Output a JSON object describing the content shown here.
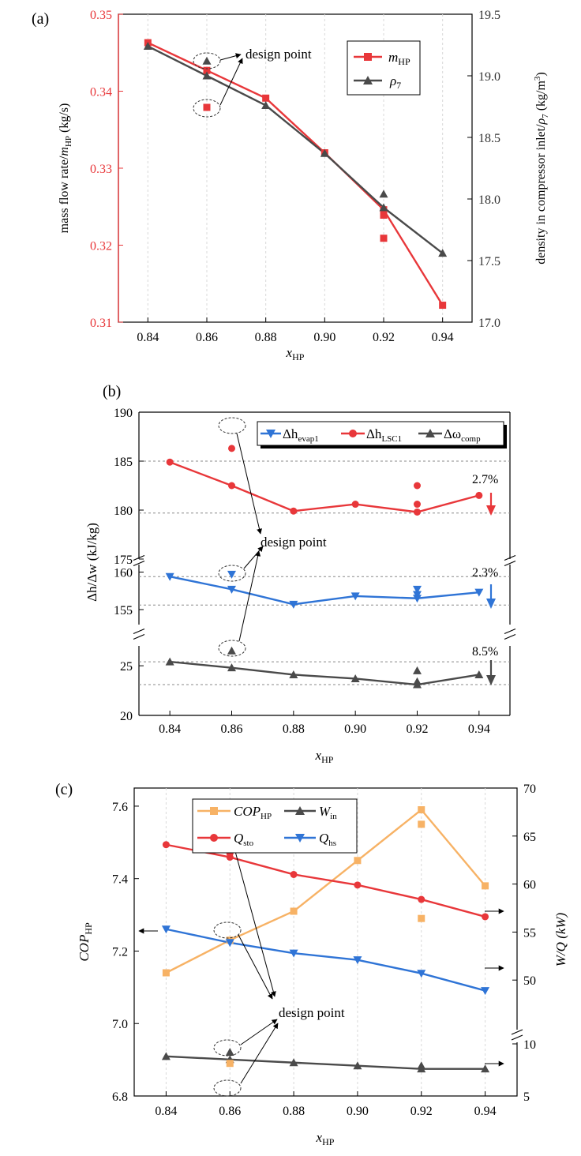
{
  "colors": {
    "red": "#e8373a",
    "dark": "#4a4a4a",
    "blue": "#2f74d6",
    "orange": "#f7b265",
    "axis": "#000000",
    "grid": "#888888"
  },
  "chart_data": [
    {
      "panel_label": "(a)",
      "type": "line",
      "xlabel_main": "x",
      "xlabel_sub": "HP",
      "xlim": [
        0.83,
        0.95
      ],
      "xticks": [
        "0.84",
        "0.86",
        "0.88",
        "0.90",
        "0.92",
        "0.94"
      ],
      "ylabel_left": {
        "parts": [
          "mass flow rate/",
          "m",
          "HP",
          " (kg/s)"
        ]
      },
      "ylabel_right": {
        "parts": [
          "density in compressor inlet/",
          "ρ",
          "7",
          " (kg/m",
          "3",
          ")"
        ]
      },
      "ylim_left": [
        0.31,
        0.35
      ],
      "yticks_left": [
        "0.31",
        "0.32",
        "0.33",
        "0.34",
        "0.35"
      ],
      "ylim_right": [
        17.0,
        19.5
      ],
      "yticks_right": [
        "17.0",
        "17.5",
        "18.0",
        "18.5",
        "19.0",
        "19.5"
      ],
      "annotation": "design point",
      "legend_placement": "top-right",
      "series": [
        {
          "name": "m",
          "name_sub": "HP",
          "axis": "left",
          "marker": "square",
          "color_key": "red",
          "x": [
            0.84,
            0.86,
            0.88,
            0.9,
            0.92,
            0.94
          ],
          "y": [
            0.3463,
            0.3427,
            0.3391,
            0.332,
            0.3246,
            0.3122
          ]
        },
        {
          "name": "ρ",
          "name_sub": "7",
          "axis": "right",
          "marker": "triangle",
          "color_key": "dark",
          "x": [
            0.84,
            0.86,
            0.88,
            0.9,
            0.92,
            0.94
          ],
          "y": [
            19.24,
            19.0,
            18.76,
            18.37,
            17.93,
            17.56
          ]
        }
      ],
      "extra_points": [
        {
          "axis": "left",
          "marker": "square",
          "color_key": "red",
          "x": 0.86,
          "y": 0.3379
        },
        {
          "axis": "left",
          "marker": "square",
          "color_key": "red",
          "x": 0.92,
          "y": 0.3239
        },
        {
          "axis": "left",
          "marker": "square",
          "color_key": "red",
          "x": 0.92,
          "y": 0.3209
        },
        {
          "axis": "right",
          "marker": "triangle",
          "color_key": "dark",
          "x": 0.86,
          "y": 19.12
        },
        {
          "axis": "right",
          "marker": "triangle",
          "color_key": "dark",
          "x": 0.92,
          "y": 18.04
        }
      ]
    },
    {
      "panel_label": "(b)",
      "type": "line",
      "xlabel_main": "x",
      "xlabel_sub": "HP",
      "xlim": [
        0.83,
        0.95
      ],
      "xticks": [
        "0.84",
        "0.86",
        "0.88",
        "0.90",
        "0.92",
        "0.94"
      ],
      "ylabel": "Δh/Δw (kJ/kg)",
      "broken_axis_segments": [
        {
          "ylim": [
            175,
            190
          ],
          "yticks": [
            "175",
            "180",
            "185",
            "190"
          ]
        },
        {
          "ylim": [
            153,
            161
          ],
          "yticks": [
            "155",
            "160"
          ]
        },
        {
          "ylim": [
            20,
            27
          ],
          "yticks": [
            "20",
            "25"
          ]
        }
      ],
      "annotation": "design point",
      "legend_placement": "top",
      "percent_labels": [
        "2.7%",
        "2.3%",
        "8.5%"
      ],
      "reference_lines": [
        185.0,
        179.7,
        159.4,
        155.6,
        25.4,
        23.1
      ],
      "series": [
        {
          "name": "Δh",
          "name_sub": "evap1",
          "marker": "triangle-down",
          "color_key": "blue",
          "segment": 1,
          "x": [
            0.84,
            0.86,
            0.88,
            0.9,
            0.92,
            0.94
          ],
          "y": [
            159.4,
            157.7,
            155.7,
            156.8,
            156.5,
            157.3
          ]
        },
        {
          "name": "Δh",
          "name_sub": "LSC1",
          "marker": "circle",
          "color_key": "red",
          "segment": 0,
          "x": [
            0.84,
            0.86,
            0.88,
            0.9,
            0.92,
            0.94
          ],
          "y": [
            184.9,
            182.5,
            179.9,
            180.6,
            179.8,
            181.5
          ]
        },
        {
          "name": "Δω",
          "name_sub": "comp",
          "marker": "triangle",
          "color_key": "dark",
          "segment": 2,
          "x": [
            0.84,
            0.86,
            0.88,
            0.9,
            0.92,
            0.94
          ],
          "y": [
            25.4,
            24.8,
            24.1,
            23.7,
            23.1,
            24.1
          ]
        }
      ],
      "extra_points": [
        {
          "segment": 0,
          "marker": "circle",
          "color_key": "red",
          "x": 0.86,
          "y": 186.3
        },
        {
          "segment": 0,
          "marker": "circle",
          "color_key": "red",
          "x": 0.92,
          "y": 182.5
        },
        {
          "segment": 0,
          "marker": "circle",
          "color_key": "red",
          "x": 0.92,
          "y": 180.6
        },
        {
          "segment": 1,
          "marker": "triangle-down",
          "color_key": "blue",
          "x": 0.86,
          "y": 159.7
        },
        {
          "segment": 1,
          "marker": "triangle-down",
          "color_key": "blue",
          "x": 0.92,
          "y": 157.7
        },
        {
          "segment": 1,
          "marker": "triangle-down",
          "color_key": "blue",
          "x": 0.92,
          "y": 157.0
        },
        {
          "segment": 2,
          "marker": "triangle",
          "color_key": "dark",
          "x": 0.86,
          "y": 26.5
        },
        {
          "segment": 2,
          "marker": "triangle",
          "color_key": "dark",
          "x": 0.92,
          "y": 24.5
        },
        {
          "segment": 2,
          "marker": "triangle",
          "color_key": "dark",
          "x": 0.92,
          "y": 23.4
        }
      ]
    },
    {
      "panel_label": "(c)",
      "type": "line",
      "xlabel_main": "x",
      "xlabel_sub": "HP",
      "xlim": [
        0.83,
        0.95
      ],
      "xticks": [
        "0.84",
        "0.86",
        "0.88",
        "0.90",
        "0.92",
        "0.94"
      ],
      "ylabel_left_main": "COP",
      "ylabel_left_sub": "HP",
      "ylabel_right": "W/Q (kW)",
      "ylim_left": [
        6.8,
        7.65
      ],
      "yticks_left": [
        "6.8",
        "7.0",
        "7.2",
        "7.4",
        "7.6"
      ],
      "right_axis_segments": [
        {
          "ylim": [
            45,
            70
          ],
          "yticks": [
            "50",
            "55",
            "60",
            "65",
            "70"
          ]
        },
        {
          "ylim": [
            5,
            10
          ],
          "yticks": [
            "5",
            "10"
          ]
        }
      ],
      "annotation": "design point",
      "legend_placement": "top",
      "series": [
        {
          "name": "COP",
          "name_sub": "HP",
          "axis": "left",
          "marker": "square",
          "color_key": "orange",
          "x": [
            0.84,
            0.86,
            0.88,
            0.9,
            0.92,
            0.94
          ],
          "y": [
            7.14,
            7.23,
            7.31,
            7.45,
            7.59,
            7.38
          ]
        },
        {
          "name": "W",
          "name_sub": "in",
          "axis": "right",
          "segment": 1,
          "marker": "triangle",
          "color_key": "dark",
          "x": [
            0.84,
            0.86,
            0.88,
            0.9,
            0.92,
            0.94
          ],
          "y": [
            8.8,
            8.5,
            8.2,
            7.9,
            7.6,
            7.6
          ]
        },
        {
          "name": "Q",
          "name_sub": "sto",
          "axis": "right",
          "segment": 0,
          "marker": "circle",
          "color_key": "red",
          "x": [
            0.84,
            0.86,
            0.88,
            0.9,
            0.92,
            0.94
          ],
          "y": [
            64.1,
            62.8,
            61.0,
            59.9,
            58.4,
            56.6
          ]
        },
        {
          "name": "Q",
          "name_sub": "hs",
          "axis": "right",
          "segment": 0,
          "marker": "triangle-down",
          "color_key": "blue",
          "x": [
            0.84,
            0.86,
            0.88,
            0.9,
            0.92,
            0.94
          ],
          "y": [
            55.3,
            53.9,
            52.8,
            52.1,
            50.7,
            48.9
          ]
        }
      ],
      "extra_points": [
        {
          "axis": "left",
          "marker": "square",
          "color_key": "orange",
          "x": 0.86,
          "y": 6.89
        },
        {
          "axis": "left",
          "marker": "square",
          "color_key": "orange",
          "x": 0.92,
          "y": 7.55
        },
        {
          "axis": "left",
          "marker": "square",
          "color_key": "orange",
          "x": 0.92,
          "y": 7.29
        },
        {
          "axis": "right",
          "segment": 0,
          "marker": "circle",
          "color_key": "red",
          "x": 0.86,
          "y": 63.2
        },
        {
          "axis": "right",
          "segment": 1,
          "marker": "triangle",
          "color_key": "dark",
          "x": 0.86,
          "y": 9.2
        },
        {
          "axis": "right",
          "segment": 1,
          "marker": "triangle",
          "color_key": "dark",
          "x": 0.92,
          "y": 7.9
        }
      ]
    }
  ]
}
